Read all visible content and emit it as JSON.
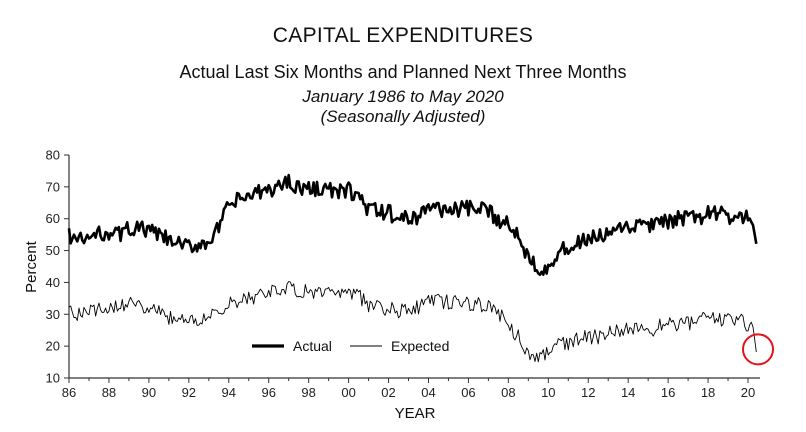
{
  "chart_data": {
    "type": "line",
    "title": "CAPITAL EXPENDITURES",
    "subtitle": "Actual Last Six Months and Planned Next Three Months",
    "period": "January 1986 to May 2020",
    "adjustment": "(Seasonally Adjusted)",
    "xlabel": "YEAR",
    "ylabel": "Percent",
    "xlim": [
      1986,
      2020.6
    ],
    "ylim": [
      10,
      80
    ],
    "x_tick_labels": [
      "86",
      "88",
      "90",
      "92",
      "94",
      "96",
      "98",
      "00",
      "02",
      "04",
      "06",
      "08",
      "10",
      "12",
      "14",
      "16",
      "18",
      "20"
    ],
    "y_tick_labels": [
      "10",
      "20",
      "30",
      "40",
      "50",
      "60",
      "70",
      "80"
    ],
    "legend": {
      "position": "bottom-center",
      "entries": [
        "Actual",
        "Expected"
      ]
    },
    "highlight": {
      "shape": "circle",
      "color": "#e4121b",
      "x": 2020.4,
      "y": 19
    },
    "series": [
      {
        "name": "Actual",
        "style": "thick",
        "color": "#000000",
        "x": [
          1986,
          1986.5,
          1987,
          1987.5,
          1988,
          1988.5,
          1989,
          1989.5,
          1990,
          1990.5,
          1991,
          1991.5,
          1992,
          1992.5,
          1993,
          1993.5,
          1994,
          1994.5,
          1995,
          1995.5,
          1996,
          1996.5,
          1997,
          1997.5,
          1998,
          1998.5,
          1999,
          1999.5,
          2000,
          2000.5,
          2001,
          2001.5,
          2002,
          2002.5,
          2003,
          2003.5,
          2004,
          2004.5,
          2005,
          2005.5,
          2006,
          2006.5,
          2007,
          2007.5,
          2008,
          2008.5,
          2009,
          2009.5,
          2010,
          2010.5,
          2011,
          2011.5,
          2012,
          2012.5,
          2013,
          2013.5,
          2014,
          2014.5,
          2015,
          2015.5,
          2016,
          2016.5,
          2017,
          2017.5,
          2018,
          2018.5,
          2019,
          2019.5,
          2020,
          2020.25,
          2020.42
        ],
        "values": [
          55,
          53,
          54,
          55,
          56,
          55,
          57,
          57,
          56,
          55,
          53,
          52,
          51,
          52,
          53,
          57,
          64,
          66,
          67,
          68,
          69,
          70,
          72,
          70,
          69,
          70,
          69,
          68,
          69,
          67,
          63,
          62,
          62,
          60,
          60,
          61,
          64,
          63,
          63,
          63,
          63,
          63,
          62,
          60,
          58,
          55,
          48,
          45,
          45,
          49,
          51,
          52,
          54,
          54,
          55,
          56,
          57,
          58,
          58,
          58,
          59,
          60,
          60,
          60,
          62,
          62,
          60,
          61,
          60,
          58,
          52
        ]
      },
      {
        "name": "Expected",
        "style": "thin",
        "color": "#000000",
        "x": [
          1986,
          1986.5,
          1987,
          1987.5,
          1988,
          1988.5,
          1989,
          1989.5,
          1990,
          1990.5,
          1991,
          1991.5,
          1992,
          1992.5,
          1993,
          1993.5,
          1994,
          1994.5,
          1995,
          1995.5,
          1996,
          1996.5,
          1997,
          1997.5,
          1998,
          1998.5,
          1999,
          1999.5,
          2000,
          2000.5,
          2001,
          2001.5,
          2002,
          2002.5,
          2003,
          2003.5,
          2004,
          2004.5,
          2005,
          2005.5,
          2006,
          2006.5,
          2007,
          2007.5,
          2008,
          2008.5,
          2009,
          2009.5,
          2010,
          2010.5,
          2011,
          2011.5,
          2012,
          2012.5,
          2013,
          2013.5,
          2014,
          2014.5,
          2015,
          2015.5,
          2016,
          2016.5,
          2017,
          2017.5,
          2018,
          2018.5,
          2019,
          2019.5,
          2020,
          2020.25,
          2020.42
        ],
        "values": [
          31,
          30,
          31,
          32,
          32,
          33,
          33,
          33,
          32,
          31,
          29,
          28,
          28,
          29,
          30,
          31,
          33,
          34,
          35,
          36,
          37,
          37,
          38,
          37,
          37,
          37,
          37,
          36,
          37,
          36,
          33,
          32,
          32,
          31,
          32,
          32,
          35,
          34,
          34,
          34,
          33,
          33,
          32,
          30,
          27,
          23,
          17,
          17,
          18,
          20,
          21,
          22,
          23,
          23,
          24,
          25,
          26,
          26,
          25,
          26,
          27,
          27,
          27,
          28,
          29,
          29,
          28,
          28,
          27,
          26,
          18
        ]
      }
    ]
  }
}
